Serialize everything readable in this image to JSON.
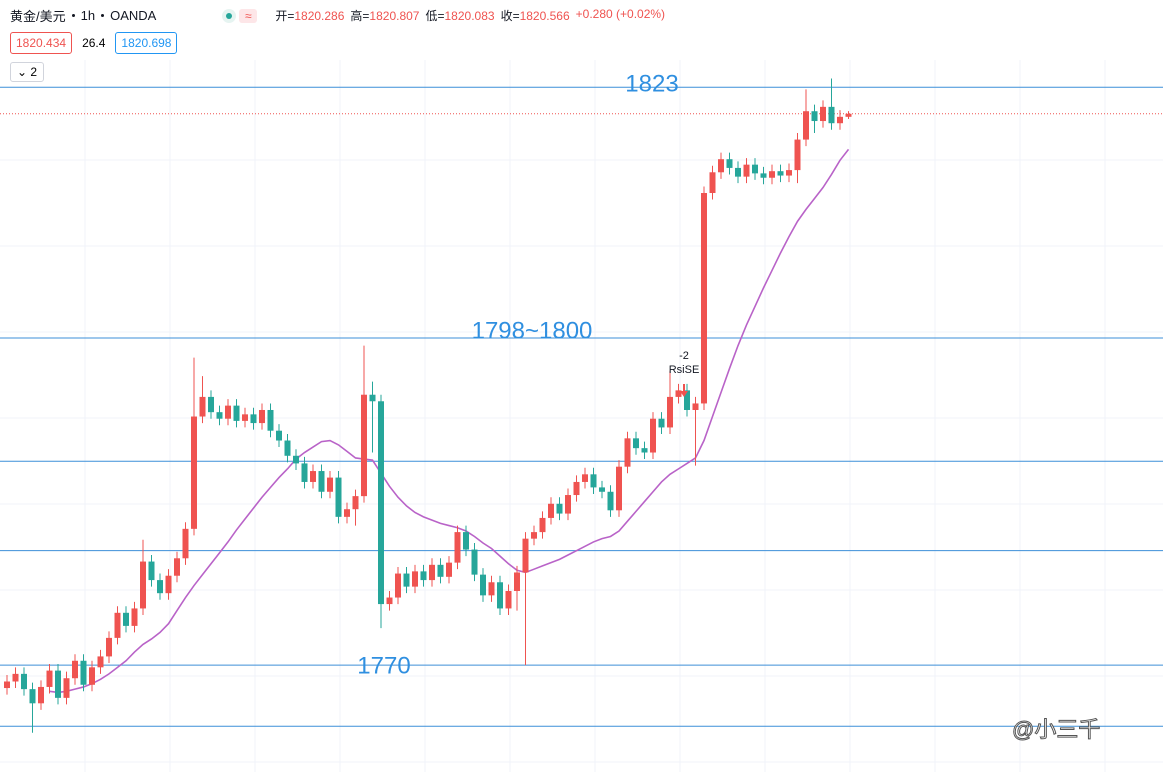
{
  "header": {
    "symbol": "黄金/美元",
    "interval": "1h",
    "exchange": "OANDA",
    "ohlc_labels": [
      "开=",
      "高=",
      "低=",
      "收="
    ],
    "change": "+0.280 (+0.02%)",
    "bid": "1820.434",
    "spread": "26.4",
    "ask": "1820.698",
    "indicator_count": "2"
  },
  "watermark": "@小三千",
  "chart_data": {
    "type": "candlestick",
    "open": [
      1767.9,
      1768.5,
      1769.2,
      1767.8,
      1766.5,
      1768,
      1769.5,
      1767,
      1768.8,
      1770.4,
      1768.2,
      1769.8,
      1770.8,
      1772.5,
      1774.8,
      1773.6,
      1775.2,
      1779.5,
      1777.8,
      1776.6,
      1778.2,
      1779.8,
      1782.5,
      1792.8,
      1794.6,
      1793.2,
      1792.6,
      1793.8,
      1792.4,
      1793.0,
      1792.2,
      1793.4,
      1791.5,
      1790.6,
      1789.2,
      1788.5,
      1786.8,
      1787.8,
      1785.9,
      1787.2,
      1783.6,
      1784.3,
      1785.5,
      1794.8,
      1794.2,
      1775.6,
      1776.2,
      1778.4,
      1777.2,
      1778.6,
      1777.8,
      1779.2,
      1778.1,
      1779.4,
      1782.2,
      1780.6,
      1778.3,
      1776.4,
      1777.6,
      1775.2,
      1776.8,
      1778.5,
      1781.6,
      1782.2,
      1783.5,
      1784.8,
      1783.9,
      1785.6,
      1786.8,
      1787.5,
      1786.3,
      1785.9,
      1784.2,
      1788.2,
      1790.8,
      1789.9,
      1789.5,
      1792.6,
      1791.8,
      1794.6,
      1795.2,
      1793.4,
      1794.0,
      1813.3,
      1815.2,
      1816.4,
      1815.6,
      1814.8,
      1815.9,
      1815.1,
      1814.7,
      1815.3,
      1814.9,
      1815.4,
      1818.2,
      1820.8,
      1819.9,
      1821.2,
      1819.7,
      1820.286
    ],
    "high": [
      1769.1,
      1769.8,
      1769.8,
      1768.4,
      1768.6,
      1770.1,
      1770.1,
      1769.4,
      1771.0,
      1771.0,
      1770.4,
      1771.4,
      1773.1,
      1775.4,
      1775.4,
      1775.8,
      1781.5,
      1780.1,
      1778.4,
      1778.8,
      1780.4,
      1783.1,
      1798.2,
      1796.5,
      1795.2,
      1793.8,
      1794.4,
      1794.4,
      1793.6,
      1793.6,
      1794.0,
      1794.0,
      1792.1,
      1791.2,
      1789.8,
      1789.1,
      1788.4,
      1788.4,
      1787.8,
      1787.8,
      1784.9,
      1786.1,
      1799.3,
      1796.0,
      1794.8,
      1776.8,
      1779.0,
      1779.0,
      1779.2,
      1779.2,
      1779.8,
      1779.8,
      1780.0,
      1782.8,
      1782.8,
      1781.2,
      1778.9,
      1778.2,
      1778.2,
      1777.4,
      1779.1,
      1782.2,
      1782.8,
      1784.1,
      1785.4,
      1785.4,
      1786.2,
      1787.4,
      1788.1,
      1788.1,
      1786.9,
      1786.5,
      1788.8,
      1791.4,
      1791.4,
      1790.5,
      1793.2,
      1793.2,
      1797.0,
      1795.8,
      1795.8,
      1794.6,
      1813.9,
      1815.8,
      1817.0,
      1817.0,
      1816.2,
      1816.5,
      1816.5,
      1815.7,
      1815.9,
      1815.9,
      1816.0,
      1818.8,
      1822.8,
      1821.4,
      1821.8,
      1823.8,
      1820.9,
      1820.807
    ],
    "low": [
      1767.3,
      1767.9,
      1767.2,
      1763.8,
      1765.9,
      1767.4,
      1766.4,
      1766.4,
      1768.2,
      1767.6,
      1767.6,
      1769.2,
      1770.2,
      1771.9,
      1773.0,
      1773.0,
      1774.6,
      1777.2,
      1776.0,
      1776.0,
      1777.6,
      1779.2,
      1781.9,
      1792.2,
      1792.6,
      1792.0,
      1792.0,
      1791.8,
      1791.8,
      1791.6,
      1791.6,
      1790.9,
      1790.0,
      1788.6,
      1787.9,
      1786.2,
      1786.2,
      1785.3,
      1785.3,
      1783.0,
      1783.0,
      1782.8,
      1784.9,
      1789.5,
      1773.4,
      1775.0,
      1775.6,
      1776.6,
      1776.6,
      1777.2,
      1777.2,
      1777.5,
      1777.5,
      1778.8,
      1780.0,
      1777.7,
      1775.8,
      1775.8,
      1774.6,
      1774.6,
      1775.0,
      1770.0,
      1781.0,
      1781.6,
      1782.9,
      1783.3,
      1783.3,
      1785.0,
      1786.2,
      1785.7,
      1785.3,
      1783.6,
      1783.6,
      1787.6,
      1789.3,
      1788.9,
      1788.9,
      1791.2,
      1791.2,
      1794.0,
      1792.8,
      1788.3,
      1793.4,
      1812.7,
      1814.6,
      1815.0,
      1814.2,
      1814.2,
      1814.5,
      1814.1,
      1814.1,
      1814.3,
      1814.3,
      1814.2,
      1817.6,
      1818.8,
      1819.3,
      1819.1,
      1819.1,
      1820.083
    ],
    "close": [
      1768.5,
      1769.2,
      1767.8,
      1766.5,
      1768,
      1769.5,
      1767,
      1768.8,
      1770.4,
      1768.2,
      1769.8,
      1770.8,
      1772.5,
      1774.8,
      1773.6,
      1775.2,
      1779.5,
      1777.8,
      1776.6,
      1778.2,
      1779.8,
      1782.5,
      1792.8,
      1794.6,
      1793.2,
      1792.6,
      1793.8,
      1792.4,
      1793.0,
      1792.2,
      1793.4,
      1791.5,
      1790.6,
      1789.2,
      1788.5,
      1786.8,
      1787.8,
      1785.9,
      1787.2,
      1783.6,
      1784.3,
      1785.5,
      1794.8,
      1794.2,
      1775.6,
      1776.2,
      1778.4,
      1777.2,
      1778.6,
      1777.8,
      1779.2,
      1778.1,
      1779.4,
      1782.2,
      1780.6,
      1778.3,
      1776.4,
      1777.6,
      1775.2,
      1776.8,
      1778.5,
      1781.6,
      1782.2,
      1783.5,
      1784.8,
      1783.9,
      1785.6,
      1786.8,
      1787.5,
      1786.3,
      1785.9,
      1784.2,
      1788.2,
      1790.8,
      1789.9,
      1789.5,
      1792.6,
      1791.8,
      1794.6,
      1795.2,
      1793.4,
      1794.0,
      1813.3,
      1815.2,
      1816.4,
      1815.6,
      1814.8,
      1815.9,
      1815.1,
      1814.7,
      1815.3,
      1814.9,
      1815.4,
      1818.2,
      1820.8,
      1819.9,
      1821.2,
      1819.7,
      1820.286,
      1820.566
    ],
    "up_color": "#ef5350",
    "down_color": "#26a69a",
    "line_values": [
      null,
      null,
      null,
      null,
      null,
      1767.6,
      1767.5,
      1767.6,
      1767.8,
      1768.0,
      1768.3,
      1768.7,
      1769.2,
      1769.8,
      1770.4,
      1771.2,
      1771.9,
      1772.4,
      1773.0,
      1773.8,
      1775.0,
      1776.2,
      1777.3,
      1778.3,
      1779.3,
      1780.3,
      1781.3,
      1782.4,
      1783.4,
      1784.4,
      1785.4,
      1786.3,
      1787.2,
      1788.0,
      1788.9,
      1789.5,
      1790.0,
      1790.5,
      1790.6,
      1790.2,
      1789.6,
      1789.0,
      1788.9,
      1788.8,
      1787.6,
      1786.4,
      1785.4,
      1784.6,
      1784.0,
      1783.6,
      1783.3,
      1783.0,
      1782.8,
      1782.6,
      1782.3,
      1781.8,
      1781.2,
      1780.7,
      1780.0,
      1779.3,
      1778.7,
      1778.5,
      1778.8,
      1779.1,
      1779.4,
      1779.7,
      1780.1,
      1780.5,
      1780.9,
      1781.3,
      1781.6,
      1781.8,
      1782.3,
      1783.2,
      1784.1,
      1785.0,
      1785.9,
      1786.8,
      1787.5,
      1788.0,
      1788.5,
      1789.0,
      1790.6,
      1792.8,
      1795.0,
      1797.2,
      1799.3,
      1801.2,
      1802.9,
      1804.6,
      1806.2,
      1807.8,
      1809.3,
      1810.7,
      1811.8,
      1812.8,
      1813.8,
      1815.0,
      1816.3,
      1817.3
    ],
    "line_color": "#b963c8",
    "ylim": [
      1760.2,
      1831.0
    ],
    "levels": [
      {
        "value": 1823,
        "label": "1823"
      },
      {
        "value": 1800,
        "label": "1798~1800"
      },
      {
        "value": 1788.7,
        "label": null
      },
      {
        "value": 1780.5,
        "label": null
      },
      {
        "value": 1770,
        "label": "1770"
      },
      {
        "value": 1764.4,
        "label": null
      }
    ],
    "level_color": "#3d8fd8",
    "annotations": [
      "-2",
      "RsiSE"
    ]
  }
}
